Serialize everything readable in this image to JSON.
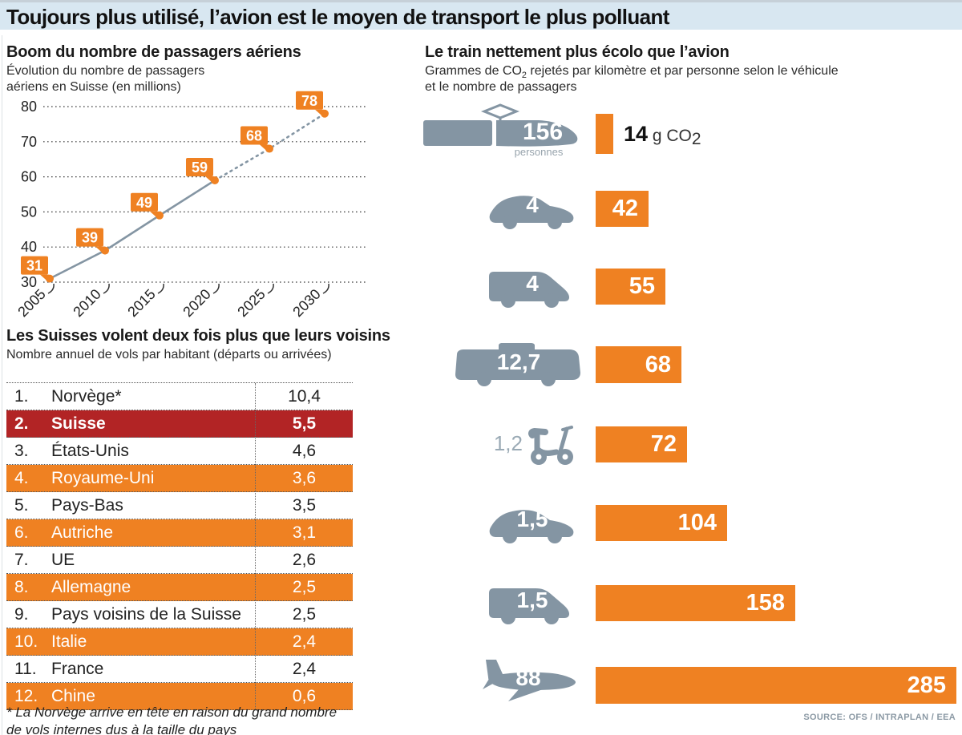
{
  "header": {
    "title": "Toujours plus utilisé, l’avion est le moyen de transport le plus polluant"
  },
  "source": "SOURCE: OFS / INTRAPLAN / EEA",
  "footnote": "* La Norvège arrive en tête en raison du grand nombre de vols internes dus à la taille du pays",
  "colors": {
    "orange": "#ef8122",
    "red": "#b22425",
    "icon_gray": "#8495a3",
    "header_blue": "#d8e7f1"
  },
  "chart_data": [
    {
      "id": "passengers",
      "type": "line",
      "title": "Boom du nombre de passagers aériens",
      "subtitle": "Évolution du nombre de passagers aériens en Suisse (en millions)",
      "x": [
        "2005",
        "2010",
        "2015",
        "2020",
        "2025",
        "2030"
      ],
      "values": [
        31,
        39,
        49,
        59,
        68,
        78
      ],
      "ylim": [
        30,
        80
      ],
      "yticks": [
        30,
        40,
        50,
        60,
        70,
        80
      ],
      "solid_until_index": 3,
      "grid": "horizontal dotted",
      "note": "dotted segment after 2020 = projection"
    },
    {
      "id": "co2",
      "type": "bar",
      "title": "Le train nettement plus écolo que l’avion",
      "subtitle_pre": "Grammes de CO",
      "subtitle_sub": "2",
      "subtitle_post": " rejetés par kilomètre et par personne selon le véhicule et le nombre de passagers",
      "unit_pre": " g CO",
      "unit_sub": "2",
      "xmax": 285,
      "rows": [
        {
          "vehicle": "train",
          "passengers": "156",
          "passengers_caption": "personnes",
          "value": 14
        },
        {
          "vehicle": "car",
          "passengers": "4",
          "value": 42
        },
        {
          "vehicle": "van",
          "passengers": "4",
          "value": 55
        },
        {
          "vehicle": "bus",
          "passengers": "12,7",
          "value": 68
        },
        {
          "vehicle": "scooter",
          "passengers": "1,2",
          "value": 72
        },
        {
          "vehicle": "car",
          "passengers": "1,5",
          "value": 104
        },
        {
          "vehicle": "van",
          "passengers": "1,5",
          "value": 158
        },
        {
          "vehicle": "plane",
          "passengers": "88",
          "value": 285
        }
      ]
    },
    {
      "id": "flights",
      "type": "table",
      "title": "Les Suisses volent deux fois plus que leurs voisins",
      "subtitle": "Nombre annuel de vols par habitant (départs ou arrivées)",
      "rows": [
        {
          "rank": "1.",
          "country": "Norvège*",
          "value": "10,4",
          "highlight": "none"
        },
        {
          "rank": "2.",
          "country": "Suisse",
          "value": "5,5",
          "highlight": "red"
        },
        {
          "rank": "3.",
          "country": "États-Unis",
          "value": "4,6",
          "highlight": "none"
        },
        {
          "rank": "4.",
          "country": "Royaume-Uni",
          "value": "3,6",
          "highlight": "orange"
        },
        {
          "rank": "5.",
          "country": "Pays-Bas",
          "value": "3,5",
          "highlight": "none"
        },
        {
          "rank": "6.",
          "country": "Autriche",
          "value": "3,1",
          "highlight": "orange"
        },
        {
          "rank": "7.",
          "country": "UE",
          "value": "2,6",
          "highlight": "none"
        },
        {
          "rank": "8.",
          "country": "Allemagne",
          "value": "2,5",
          "highlight": "orange"
        },
        {
          "rank": "9.",
          "country": "Pays voisins de la Suisse",
          "value": "2,5",
          "highlight": "none"
        },
        {
          "rank": "10.",
          "country": "Italie",
          "value": "2,4",
          "highlight": "orange"
        },
        {
          "rank": "11.",
          "country": "France",
          "value": "2,4",
          "highlight": "none"
        },
        {
          "rank": "12.",
          "country": "Chine",
          "value": "0,6",
          "highlight": "orange"
        }
      ]
    }
  ]
}
